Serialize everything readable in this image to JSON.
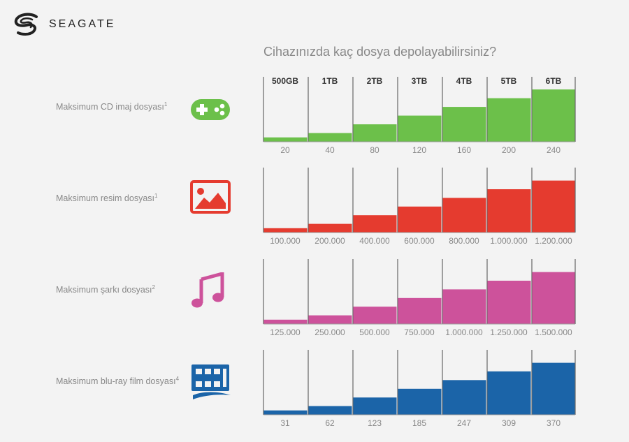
{
  "brand": {
    "name": "SEAGATE"
  },
  "title": "Cihazınızda kaç dosya depolayabilirsiniz?",
  "chart_data": {
    "type": "bar",
    "categories": [
      "500GB",
      "1TB",
      "2TB",
      "3TB",
      "4TB",
      "5TB",
      "6TB"
    ],
    "series": [
      {
        "name": "Maksimum CD imaj dosyası",
        "sup": "1",
        "icon": "gamepad-icon",
        "color": "#6cc04a",
        "values": [
          20,
          40,
          80,
          120,
          160,
          200,
          240
        ],
        "labels": [
          "20",
          "40",
          "80",
          "120",
          "160",
          "200",
          "240"
        ]
      },
      {
        "name": "Maksimum resim dosyası",
        "sup": "1",
        "icon": "image-icon",
        "color": "#e53b2f",
        "values": [
          100000,
          200000,
          400000,
          600000,
          800000,
          1000000,
          1200000
        ],
        "labels": [
          "100.000",
          "200.000",
          "400.000",
          "600.000",
          "800.000",
          "1.000.000",
          "1.200.000"
        ]
      },
      {
        "name": "Maksimum şarkı dosyası",
        "sup": "2",
        "icon": "music-note-icon",
        "color": "#cd529b",
        "values": [
          125000,
          250000,
          500000,
          750000,
          1000000,
          1250000,
          1500000
        ],
        "labels": [
          "125.000",
          "250.000",
          "500.000",
          "750.000",
          "1.000.000",
          "1.250.000",
          "1.500.000"
        ]
      },
      {
        "name": "Maksimum blu-ray film dosyası",
        "sup": "4",
        "icon": "bluray-film-icon",
        "color": "#1b64a8",
        "values": [
          31,
          62,
          123,
          185,
          247,
          309,
          370
        ],
        "labels": [
          "31",
          "62",
          "123",
          "185",
          "247",
          "309",
          "370"
        ]
      }
    ]
  }
}
